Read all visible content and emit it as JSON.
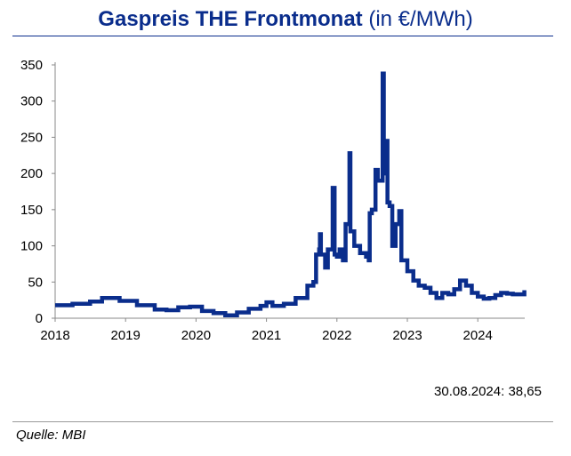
{
  "chart_data": {
    "type": "line",
    "title": "Gaspreis THE Frontmonat",
    "title_unit": "(in €/MWh)",
    "ylim": [
      0,
      350
    ],
    "yticks": [
      0,
      50,
      100,
      150,
      200,
      250,
      300,
      350
    ],
    "xticks": [
      "2018",
      "2019",
      "2020",
      "2021",
      "2022",
      "2023",
      "2024"
    ],
    "xlim": [
      "2018-01-01",
      "2024-09-01"
    ],
    "grid": false,
    "color": "#0a2d8c",
    "series": [
      {
        "points": [
          [
            "2018-01-01",
            18
          ],
          [
            "2018-04-01",
            20
          ],
          [
            "2018-07-01",
            23
          ],
          [
            "2018-09-01",
            28
          ],
          [
            "2018-12-01",
            24
          ],
          [
            "2019-03-01",
            18
          ],
          [
            "2019-06-01",
            12
          ],
          [
            "2019-08-01",
            11
          ],
          [
            "2019-10-01",
            15
          ],
          [
            "2019-12-01",
            16
          ],
          [
            "2020-02-01",
            10
          ],
          [
            "2020-04-01",
            7
          ],
          [
            "2020-06-01",
            4
          ],
          [
            "2020-08-01",
            8
          ],
          [
            "2020-10-01",
            13
          ],
          [
            "2020-12-01",
            17
          ],
          [
            "2021-01-01",
            22
          ],
          [
            "2021-02-01",
            17
          ],
          [
            "2021-04-01",
            20
          ],
          [
            "2021-06-01",
            28
          ],
          [
            "2021-08-01",
            45
          ],
          [
            "2021-09-01",
            50
          ],
          [
            "2021-09-15",
            88
          ],
          [
            "2021-10-01",
            95
          ],
          [
            "2021-10-05",
            116
          ],
          [
            "2021-10-10",
            88
          ],
          [
            "2021-11-01",
            70
          ],
          [
            "2021-11-15",
            95
          ],
          [
            "2021-12-10",
            180
          ],
          [
            "2021-12-20",
            88
          ],
          [
            "2022-01-01",
            85
          ],
          [
            "2022-01-15",
            95
          ],
          [
            "2022-02-01",
            80
          ],
          [
            "2022-02-15",
            130
          ],
          [
            "2022-03-07",
            228
          ],
          [
            "2022-03-12",
            120
          ],
          [
            "2022-04-01",
            100
          ],
          [
            "2022-05-01",
            90
          ],
          [
            "2022-06-01",
            85
          ],
          [
            "2022-06-15",
            80
          ],
          [
            "2022-06-20",
            145
          ],
          [
            "2022-07-01",
            150
          ],
          [
            "2022-07-20",
            205
          ],
          [
            "2022-08-01",
            190
          ],
          [
            "2022-08-26",
            338
          ],
          [
            "2022-09-01",
            200
          ],
          [
            "2022-09-10",
            245
          ],
          [
            "2022-09-20",
            160
          ],
          [
            "2022-10-01",
            155
          ],
          [
            "2022-10-15",
            100
          ],
          [
            "2022-11-01",
            130
          ],
          [
            "2022-11-20",
            148
          ],
          [
            "2022-12-01",
            80
          ],
          [
            "2023-01-01",
            65
          ],
          [
            "2023-02-01",
            52
          ],
          [
            "2023-03-01",
            45
          ],
          [
            "2023-04-01",
            42
          ],
          [
            "2023-05-01",
            35
          ],
          [
            "2023-06-01",
            28
          ],
          [
            "2023-07-01",
            35
          ],
          [
            "2023-08-01",
            33
          ],
          [
            "2023-09-01",
            40
          ],
          [
            "2023-10-01",
            52
          ],
          [
            "2023-11-01",
            45
          ],
          [
            "2023-12-01",
            35
          ],
          [
            "2024-01-01",
            30
          ],
          [
            "2024-02-01",
            27
          ],
          [
            "2024-03-01",
            28
          ],
          [
            "2024-04-01",
            32
          ],
          [
            "2024-05-01",
            35
          ],
          [
            "2024-06-01",
            34
          ],
          [
            "2024-07-01",
            33
          ],
          [
            "2024-08-30",
            38.65
          ]
        ]
      }
    ],
    "annotation": "30.08.2024: 38,65",
    "source": "Quelle: MBI"
  }
}
